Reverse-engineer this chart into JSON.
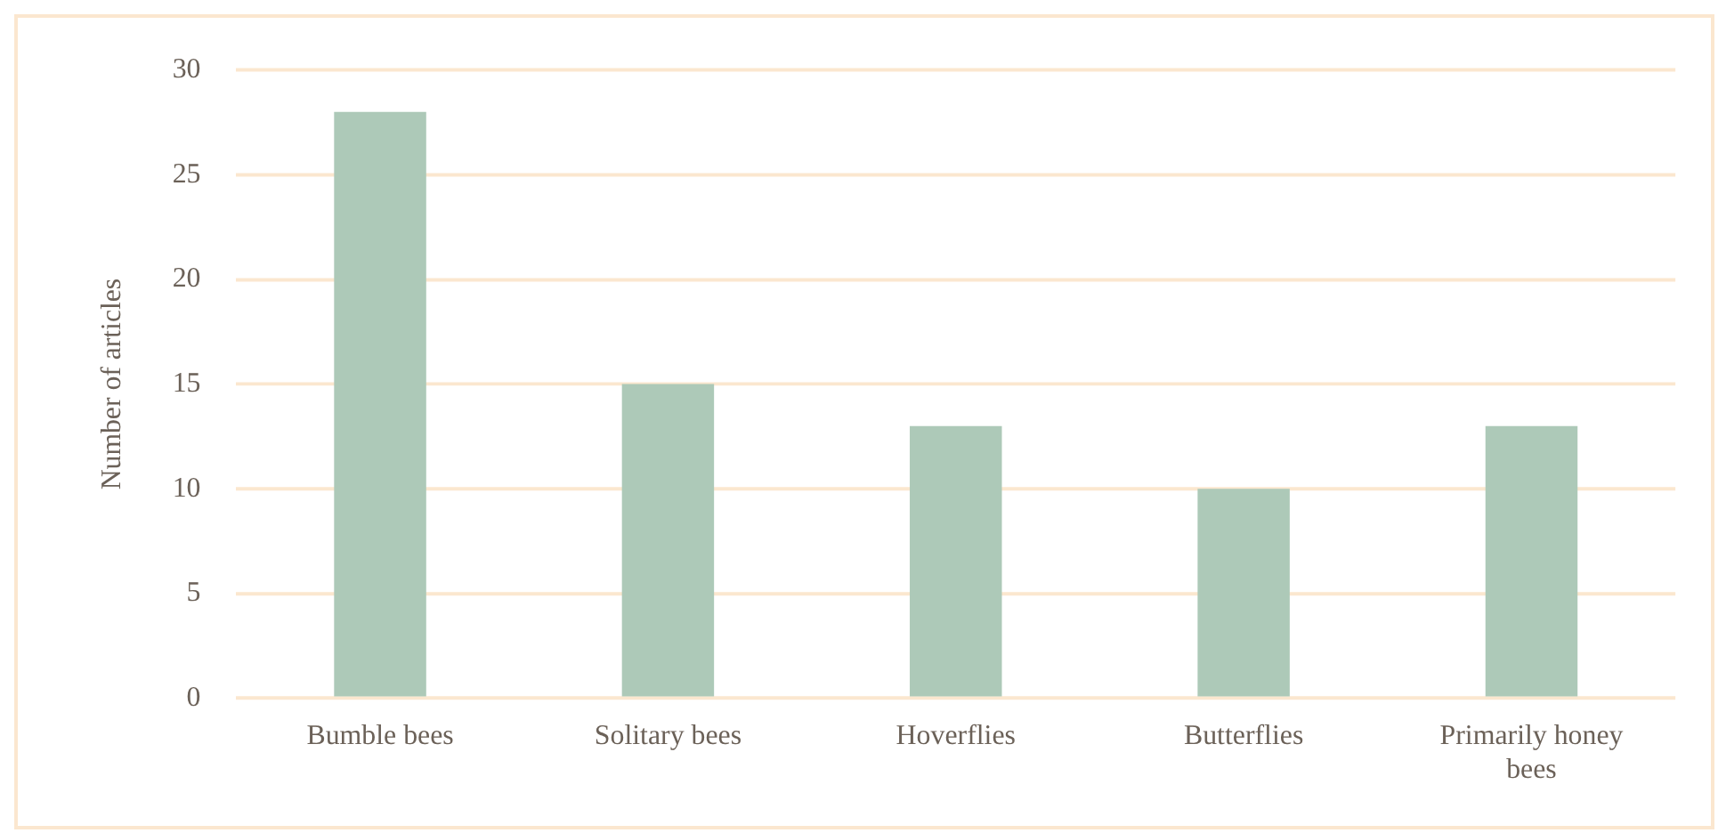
{
  "chart_data": {
    "type": "bar",
    "ylabel": "Number of articles",
    "categories": [
      "Bumble bees",
      "Solitary bees",
      "Hoverflies",
      "Butterflies",
      "Primarily honey bees"
    ],
    "values": [
      28,
      15,
      13,
      10,
      13
    ],
    "color": "#adc9b8",
    "ylim": [
      0,
      30
    ],
    "yticks": [
      0,
      5,
      10,
      15,
      20,
      25,
      30
    ],
    "grid": "y"
  }
}
